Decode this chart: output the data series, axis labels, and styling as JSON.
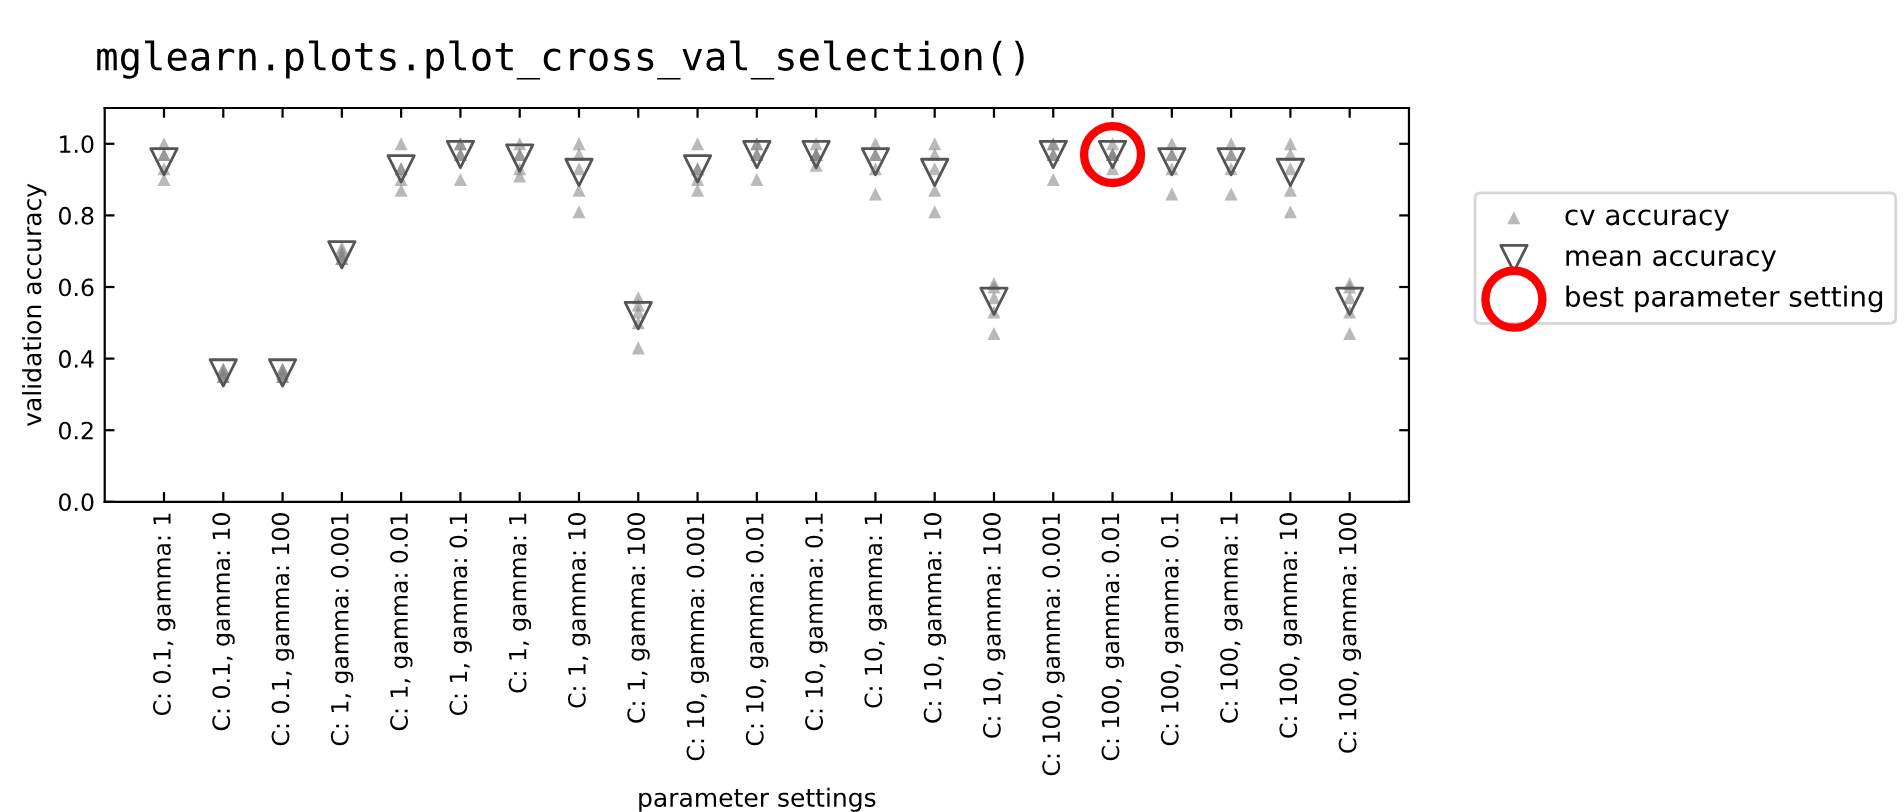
{
  "chart_data": {
    "type": "scatter",
    "title": "mglearn.plots.plot_cross_val_selection()",
    "xlabel": "parameter settings",
    "ylabel": "validation accuracy",
    "categories": [
      "C: 0.1, gamma: 1",
      "C: 0.1, gamma: 10",
      "C: 0.1, gamma: 100",
      "C: 1, gamma: 0.001",
      "C: 1, gamma: 0.01",
      "C: 1, gamma: 0.1",
      "C: 1, gamma: 1",
      "C: 1, gamma: 10",
      "C: 1, gamma: 100",
      "C: 10, gamma: 0.001",
      "C: 10, gamma: 0.01",
      "C: 10, gamma: 0.1",
      "C: 10, gamma: 1",
      "C: 10, gamma: 10",
      "C: 10, gamma: 100",
      "C: 100, gamma: 0.001",
      "C: 100, gamma: 0.01",
      "C: 100, gamma: 0.1",
      "C: 100, gamma: 1",
      "C: 100, gamma: 10",
      "C: 100, gamma: 100"
    ],
    "series": [
      {
        "name": "cv accuracy",
        "color": "#808080",
        "marker": "triangle",
        "x": [
          "C: 0.1, gamma: 1",
          "C: 0.1, gamma: 1",
          "C: 0.1, gamma: 1",
          "C: 0.1, gamma: 1",
          "C: 0.1, gamma: 1",
          "C: 0.1, gamma: 10",
          "C: 0.1, gamma: 10",
          "C: 0.1, gamma: 10",
          "C: 0.1, gamma: 10",
          "C: 0.1, gamma: 10",
          "C: 0.1, gamma: 100",
          "C: 0.1, gamma: 100",
          "C: 0.1, gamma: 100",
          "C: 0.1, gamma: 100",
          "C: 0.1, gamma: 100",
          "C: 1, gamma: 0.001",
          "C: 1, gamma: 0.001",
          "C: 1, gamma: 0.001",
          "C: 1, gamma: 0.001",
          "C: 1, gamma: 0.001",
          "C: 1, gamma: 0.01",
          "C: 1, gamma: 0.01",
          "C: 1, gamma: 0.01",
          "C: 1, gamma: 0.01",
          "C: 1, gamma: 0.01",
          "C: 1, gamma: 0.1",
          "C: 1, gamma: 0.1",
          "C: 1, gamma: 0.1",
          "C: 1, gamma: 0.1",
          "C: 1, gamma: 0.1",
          "C: 1, gamma: 1",
          "C: 1, gamma: 1",
          "C: 1, gamma: 1",
          "C: 1, gamma: 1",
          "C: 1, gamma: 1",
          "C: 1, gamma: 10",
          "C: 1, gamma: 10",
          "C: 1, gamma: 10",
          "C: 1, gamma: 10",
          "C: 1, gamma: 10",
          "C: 1, gamma: 100",
          "C: 1, gamma: 100",
          "C: 1, gamma: 100",
          "C: 1, gamma: 100",
          "C: 1, gamma: 100",
          "C: 10, gamma: 0.001",
          "C: 10, gamma: 0.001",
          "C: 10, gamma: 0.001",
          "C: 10, gamma: 0.001",
          "C: 10, gamma: 0.001",
          "C: 10, gamma: 0.01",
          "C: 10, gamma: 0.01",
          "C: 10, gamma: 0.01",
          "C: 10, gamma: 0.01",
          "C: 10, gamma: 0.01",
          "C: 10, gamma: 0.1",
          "C: 10, gamma: 0.1",
          "C: 10, gamma: 0.1",
          "C: 10, gamma: 0.1",
          "C: 10, gamma: 0.1",
          "C: 10, gamma: 1",
          "C: 10, gamma: 1",
          "C: 10, gamma: 1",
          "C: 10, gamma: 1",
          "C: 10, gamma: 1",
          "C: 10, gamma: 10",
          "C: 10, gamma: 10",
          "C: 10, gamma: 10",
          "C: 10, gamma: 10",
          "C: 10, gamma: 10",
          "C: 10, gamma: 100",
          "C: 10, gamma: 100",
          "C: 10, gamma: 100",
          "C: 10, gamma: 100",
          "C: 10, gamma: 100",
          "C: 100, gamma: 0.001",
          "C: 100, gamma: 0.001",
          "C: 100, gamma: 0.001",
          "C: 100, gamma: 0.001",
          "C: 100, gamma: 0.001",
          "C: 100, gamma: 0.01",
          "C: 100, gamma: 0.01",
          "C: 100, gamma: 0.01",
          "C: 100, gamma: 0.01",
          "C: 100, gamma: 0.01",
          "C: 100, gamma: 0.1",
          "C: 100, gamma: 0.1",
          "C: 100, gamma: 0.1",
          "C: 100, gamma: 0.1",
          "C: 100, gamma: 0.1",
          "C: 100, gamma: 1",
          "C: 100, gamma: 1",
          "C: 100, gamma: 1",
          "C: 100, gamma: 1",
          "C: 100, gamma: 1",
          "C: 100, gamma: 10",
          "C: 100, gamma: 10",
          "C: 100, gamma: 10",
          "C: 100, gamma: 10",
          "C: 100, gamma: 10",
          "C: 100, gamma: 100",
          "C: 100, gamma: 100",
          "C: 100, gamma: 100",
          "C: 100, gamma: 100",
          "C: 100, gamma: 100"
        ],
        "values": [
          1.0,
          0.97,
          0.97,
          0.9,
          0.93,
          0.37,
          0.37,
          0.35,
          0.35,
          0.36,
          0.37,
          0.37,
          0.35,
          0.35,
          0.36,
          0.71,
          0.7,
          0.68,
          0.68,
          0.69,
          1.0,
          0.93,
          0.9,
          0.87,
          0.93,
          1.0,
          1.0,
          0.97,
          0.97,
          0.9,
          1.0,
          0.91,
          0.93,
          0.97,
          0.97,
          1.0,
          0.87,
          0.81,
          0.93,
          0.97,
          0.57,
          0.55,
          0.53,
          0.5,
          0.43,
          1.0,
          0.87,
          0.9,
          0.93,
          0.93,
          1.0,
          0.9,
          0.97,
          0.97,
          1.0,
          1.0,
          0.97,
          0.97,
          0.94,
          0.97,
          1.0,
          0.86,
          0.93,
          0.97,
          0.97,
          1.0,
          0.81,
          0.87,
          0.93,
          0.97,
          0.61,
          0.6,
          0.57,
          0.53,
          0.47,
          1.0,
          0.9,
          0.97,
          0.97,
          1.0,
          1.0,
          0.97,
          0.97,
          0.93,
          0.97,
          1.0,
          0.86,
          0.97,
          0.97,
          0.93,
          1.0,
          0.86,
          0.93,
          0.97,
          0.97,
          1.0,
          0.81,
          0.87,
          0.93,
          0.97,
          0.61,
          0.6,
          0.57,
          0.53,
          0.47
        ]
      },
      {
        "name": "mean accuracy",
        "color": "#555555",
        "marker": "triangle_down",
        "values": [
          0.95,
          0.36,
          0.36,
          0.69,
          0.93,
          0.97,
          0.96,
          0.92,
          0.52,
          0.93,
          0.97,
          0.97,
          0.95,
          0.92,
          0.56,
          0.97,
          0.97,
          0.95,
          0.95,
          0.92,
          0.56
        ]
      },
      {
        "name": "best parameter setting",
        "color": "#ff0000",
        "marker": "circle",
        "x": [
          "C: 100, gamma: 0.01"
        ],
        "values": [
          0.97
        ]
      }
    ],
    "ylim": [
      0,
      1.1
    ],
    "yticks": [
      {
        "value": 0,
        "label": "0.0"
      },
      0.2,
      0.4,
      0.6,
      0.8,
      {
        "value": 1,
        "label": "1.0"
      }
    ],
    "legend": "right",
    "grid": false
  }
}
